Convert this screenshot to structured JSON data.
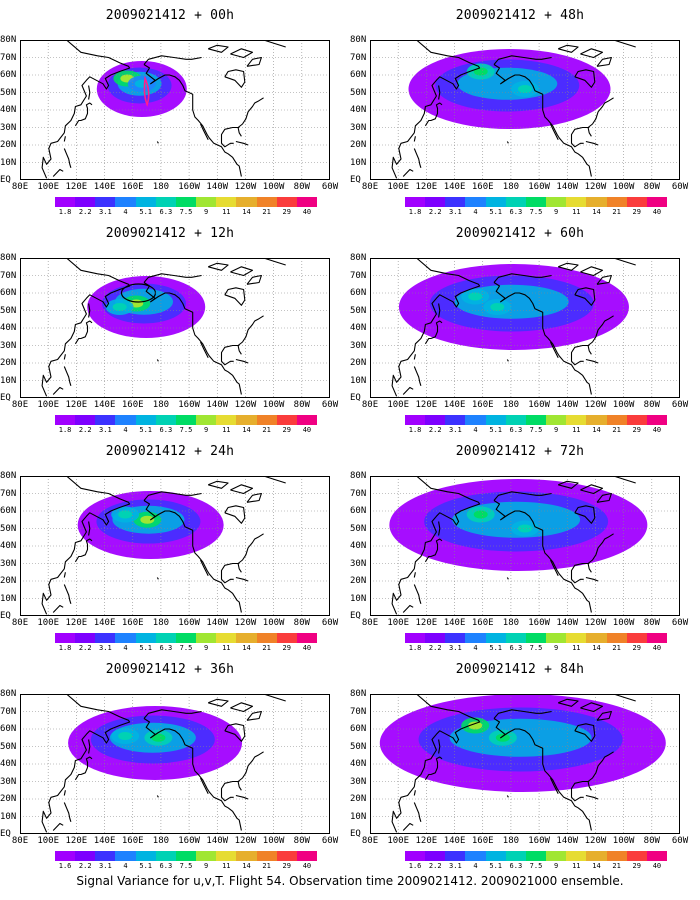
{
  "panels": [
    {
      "title": "2009021412 + 00h",
      "hotspots": [
        {
          "lon": 177,
          "lat": 58,
          "level": 8
        },
        {
          "lon": 190,
          "lat": 55,
          "level": 5
        }
      ],
      "contour": "red"
    },
    {
      "title": "2009021412 + 12h",
      "hotspots": [
        {
          "lon": 185,
          "lat": 54,
          "level": 8
        },
        {
          "lon": 170,
          "lat": 52,
          "level": 6
        }
      ],
      "contour": "black"
    },
    {
      "title": "2009021412 + 24h",
      "hotspots": [
        {
          "lon": 195,
          "lat": 55,
          "level": 8
        },
        {
          "lon": 175,
          "lat": 58,
          "level": 6
        }
      ],
      "contour": "none"
    },
    {
      "title": "2009021412 + 36h",
      "hotspots": [
        {
          "lon": 205,
          "lat": 55,
          "level": 7
        },
        {
          "lon": 175,
          "lat": 56,
          "level": 6
        }
      ],
      "contour": "none"
    },
    {
      "title": "2009021412 + 48h",
      "hotspots": [
        {
          "lon": 180,
          "lat": 62,
          "level": 7
        },
        {
          "lon": 220,
          "lat": 52,
          "level": 6
        }
      ],
      "contour": "none"
    },
    {
      "title": "2009021412 + 60h",
      "hotspots": [
        {
          "lon": 195,
          "lat": 52,
          "level": 6
        },
        {
          "lon": 175,
          "lat": 58,
          "level": 6
        }
      ],
      "contour": "none"
    },
    {
      "title": "2009021412 + 72h",
      "hotspots": [
        {
          "lon": 180,
          "lat": 58,
          "level": 7
        },
        {
          "lon": 220,
          "lat": 50,
          "level": 6
        }
      ],
      "contour": "none"
    },
    {
      "title": "2009021412 + 84h",
      "hotspots": [
        {
          "lon": 175,
          "lat": 62,
          "level": 8
        },
        {
          "lon": 200,
          "lat": 55,
          "level": 7
        }
      ],
      "contour": "none"
    }
  ],
  "lat_labels": [
    "80N",
    "70N",
    "60N",
    "50N",
    "40N",
    "30N",
    "20N",
    "10N",
    "EQ"
  ],
  "lon_labels": [
    "80E",
    "100E",
    "120E",
    "140E",
    "160E",
    "180",
    "160W",
    "140W",
    "120W",
    "100W",
    "80W",
    "60W"
  ],
  "colorbar": {
    "labels": [
      "1.8",
      "2.2",
      "3.1",
      "4",
      "5.1",
      "6.3",
      "7.5",
      "9",
      "11",
      "14",
      "21",
      "29",
      "40"
    ],
    "labels_alt": [
      "1.6",
      "2.2",
      "3.1",
      "4",
      "5.1",
      "6.3",
      "7.5",
      "9",
      "11",
      "14",
      "21",
      "29",
      "40"
    ],
    "colors": [
      "#a100ff",
      "#7d00ff",
      "#3c32ff",
      "#1e82ff",
      "#00b4e1",
      "#00d2b4",
      "#00dc64",
      "#a0e632",
      "#e6dc32",
      "#e6af2d",
      "#f08228",
      "#fa3c3c",
      "#f00082"
    ]
  },
  "footer": "Signal Variance for u,v,T. Flight 54. Observation time 2009021412. 2009021000 ensemble."
}
